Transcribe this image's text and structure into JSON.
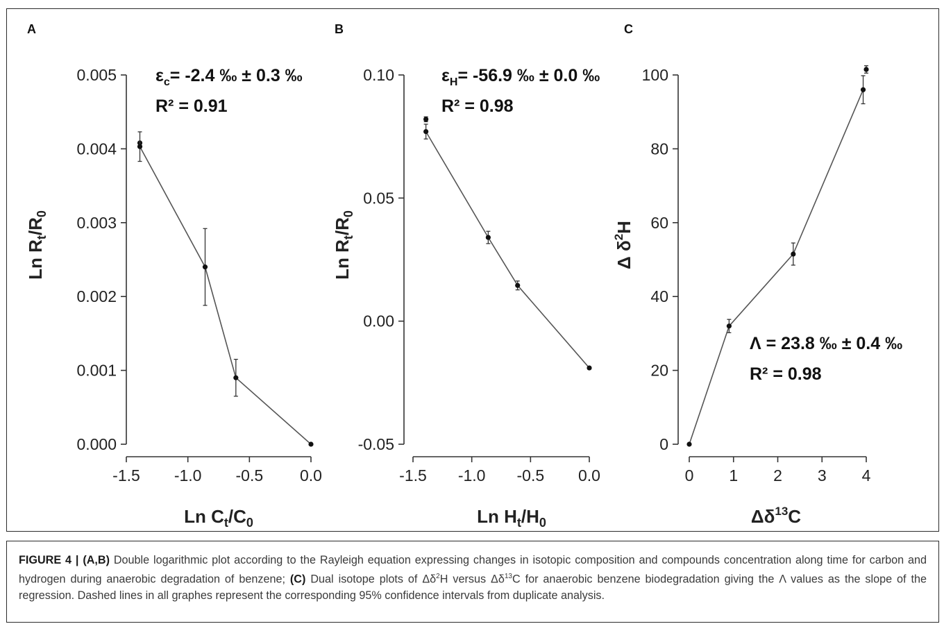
{
  "chart_data": [
    {
      "panel": "A",
      "type": "line",
      "xlabel": "Ln C",
      "xlabel_sub": "t",
      "xlabel_mid": "/C",
      "xlabel_sub2": "0",
      "ylabel": "Ln R",
      "ylabel_sub": "t",
      "ylabel_mid": "/R",
      "ylabel_sub2": "0",
      "xlim": [
        -1.5,
        0.0
      ],
      "ylim": [
        0.0,
        0.005
      ],
      "xticks": [
        -1.5,
        -1.0,
        -0.5,
        0.0
      ],
      "xtick_labels": [
        "-1.5",
        "-1.0",
        "-0.5",
        "0.0"
      ],
      "yticks": [
        0.0,
        0.001,
        0.002,
        0.003,
        0.004,
        0.005
      ],
      "ytick_labels": [
        "0.000",
        "0.001",
        "0.002",
        "0.003",
        "0.004",
        "0.005"
      ],
      "points": [
        {
          "x": -1.39,
          "y": 0.00408,
          "err": 0
        },
        {
          "x": -1.39,
          "y": 0.00403,
          "err": 0.0002
        },
        {
          "x": -0.86,
          "y": 0.0024,
          "err": 0.00052
        },
        {
          "x": -0.61,
          "y": 0.0009,
          "err": 0.00025
        },
        {
          "x": 0.0,
          "y": 0.0,
          "err": 0
        }
      ],
      "line": [
        [
          -1.39,
          0.00403
        ],
        [
          -0.86,
          0.0024
        ],
        [
          -0.61,
          0.0009
        ],
        [
          0.0,
          0.0
        ]
      ],
      "annotation_line1_prefix": "ε",
      "annotation_line1_sub": "c",
      "annotation_line1_rest": "= -2.4 ‰ ± 0.3 ‰",
      "annotation_line2": "R² = 0.91"
    },
    {
      "panel": "B",
      "type": "line",
      "xlabel": "Ln H",
      "xlabel_sub": "t",
      "xlabel_mid": "/H",
      "xlabel_sub2": "0",
      "ylabel": "Ln R",
      "ylabel_sub": "t",
      "ylabel_mid": "/R",
      "ylabel_sub2": "0",
      "xlim": [
        -1.5,
        0.0
      ],
      "ylim": [
        -0.05,
        0.1
      ],
      "xticks": [
        -1.5,
        -1.0,
        -0.5,
        0.0
      ],
      "xtick_labels": [
        "-1.5",
        "-1.0",
        "-0.5",
        "0.0"
      ],
      "yticks": [
        -0.05,
        0.0,
        0.05,
        0.1
      ],
      "ytick_labels": [
        "-0.05",
        "0.00",
        "0.05",
        "0.10"
      ],
      "points": [
        {
          "x": -1.39,
          "y": 0.082,
          "err": 0.001
        },
        {
          "x": -1.39,
          "y": 0.077,
          "err": 0.003
        },
        {
          "x": -0.86,
          "y": 0.034,
          "err": 0.0025
        },
        {
          "x": -0.61,
          "y": 0.0145,
          "err": 0.0018
        },
        {
          "x": 0.0,
          "y": -0.019,
          "err": 0
        }
      ],
      "line": [
        [
          -1.39,
          0.077
        ],
        [
          -0.86,
          0.034
        ],
        [
          -0.61,
          0.0145
        ],
        [
          0.0,
          -0.019
        ]
      ],
      "annotation_line1_prefix": "ε",
      "annotation_line1_sub": "H",
      "annotation_line1_rest": "= -56.9 ‰ ± 0.0 ‰",
      "annotation_line2": "R² = 0.98"
    },
    {
      "panel": "C",
      "type": "line",
      "xlabel": "Δδ",
      "xlabel_sup": "13",
      "xlabel_rest": "C",
      "ylabel": "Δ δ",
      "ylabel_sup": "2",
      "ylabel_rest": "H",
      "xlim": [
        0,
        4
      ],
      "ylim": [
        0,
        100
      ],
      "xticks": [
        0,
        1,
        2,
        3,
        4
      ],
      "xtick_labels": [
        "0",
        "1",
        "2",
        "3",
        "4"
      ],
      "yticks": [
        0,
        20,
        40,
        60,
        80,
        100
      ],
      "ytick_labels": [
        "0",
        "20",
        "40",
        "60",
        "80",
        "100"
      ],
      "points": [
        {
          "x": 0.0,
          "y": 0.0,
          "err": 0
        },
        {
          "x": 0.9,
          "y": 32,
          "err": 1.8
        },
        {
          "x": 2.35,
          "y": 51.5,
          "err": 3
        },
        {
          "x": 3.93,
          "y": 96,
          "err": 3.8
        },
        {
          "x": 4.0,
          "y": 101.5,
          "err": 1
        }
      ],
      "line": [
        [
          0.0,
          0.0
        ],
        [
          0.9,
          32
        ],
        [
          2.35,
          51.5
        ],
        [
          3.93,
          96
        ]
      ],
      "annotation_line1": "Λ = 23.8 ‰ ± 0.4 ‰",
      "annotation_line2": "R² = 0.98"
    }
  ],
  "caption": {
    "figure_label": "FIGURE 4 |",
    "ab_label": "(A,B)",
    "text1": " Double logarithmic plot according to the Rayleigh equation expressing changes in isotopic composition and compounds concentration along time for carbon and hydrogen during anaerobic degradation of benzene; ",
    "c_label": "(C)",
    "text2_a": " Dual isotope plots of Δδ",
    "text2_sup1": "2",
    "text2_b": "H versus Δδ",
    "text2_sup2": "13",
    "text2_c": "C for anaerobic benzene biodegradation giving the Λ values as the slope of the regression. Dashed lines in all graphes represent the corresponding 95% confidence intervals from duplicate analysis."
  }
}
